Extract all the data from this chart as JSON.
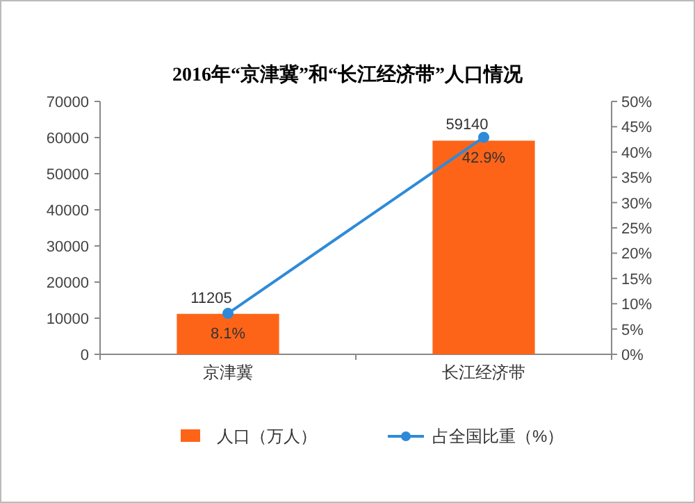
{
  "chart_data": {
    "type": "bar",
    "title": "2016年“京津冀”和“长江经济带”人口情况",
    "categories": [
      "京津冀",
      "长江经济带"
    ],
    "series": [
      {
        "name": "人口（万人）",
        "color": "#fe6418",
        "values": [
          11205,
          59140
        ],
        "value_labels": [
          "11205",
          "59140"
        ]
      },
      {
        "name": "占全国比重（%）",
        "type": "line",
        "axis": "y2",
        "color": "#2e8ad8",
        "marker": "circle",
        "values": [
          8.1,
          42.9
        ],
        "value_labels": [
          "8.1%",
          "42.9%"
        ]
      }
    ],
    "ylim": [
      0,
      70000
    ],
    "yticks": [
      0,
      10000,
      20000,
      30000,
      40000,
      50000,
      60000,
      70000
    ],
    "y2lim": [
      0,
      50
    ],
    "y2ticks": [
      {
        "value": 0,
        "label": "0%"
      },
      {
        "value": 5,
        "label": "5%"
      },
      {
        "value": 10,
        "label": "10%"
      },
      {
        "value": 15,
        "label": "15%"
      },
      {
        "value": 20,
        "label": "20%"
      },
      {
        "value": 25,
        "label": "25%"
      },
      {
        "value": 30,
        "label": "30%"
      },
      {
        "value": 35,
        "label": "35%"
      },
      {
        "value": 40,
        "label": "40%"
      },
      {
        "value": 45,
        "label": "45%"
      },
      {
        "value": 50,
        "label": "50%"
      }
    ],
    "grid": false,
    "legend": "bottom"
  }
}
